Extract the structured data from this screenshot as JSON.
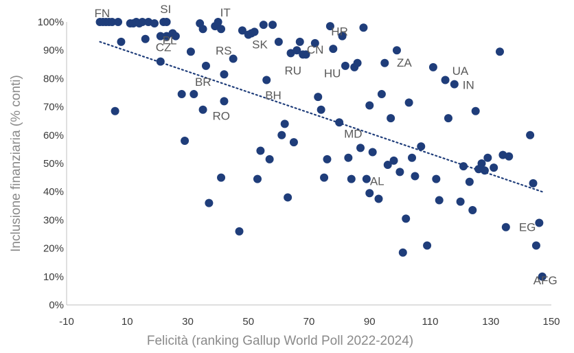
{
  "chart_data": {
    "type": "scatter",
    "title": "",
    "xlabel": "Felicità (ranking Gallup World Poll 2022-2024)",
    "ylabel": "Inclusione finanziaria (% conti)",
    "xlim": [
      -10,
      150
    ],
    "ylim": [
      0,
      100
    ],
    "xticks": [
      -10,
      10,
      30,
      50,
      70,
      90,
      110,
      130,
      150
    ],
    "yticks": [
      0,
      10,
      20,
      30,
      40,
      50,
      60,
      70,
      80,
      90,
      100
    ],
    "x_tick_labels": [
      "-10",
      "10",
      "30",
      "50",
      "70",
      "90",
      "110",
      "130",
      "150"
    ],
    "y_tick_labels": [
      "0%",
      "10%",
      "20%",
      "30%",
      "40%",
      "50%",
      "60%",
      "70%",
      "80%",
      "90%",
      "100%"
    ],
    "grid": false,
    "marker_color": "#1f3d7a",
    "trendline": {
      "style": "dotted",
      "color": "#1f3d7a",
      "from": [
        1,
        93
      ],
      "to": [
        147,
        40
      ]
    },
    "series": [
      {
        "points": [
          [
            1,
            100
          ],
          [
            2,
            100
          ],
          [
            3,
            100
          ],
          [
            4,
            100
          ],
          [
            5,
            100
          ],
          [
            7,
            100
          ],
          [
            11,
            99.5
          ],
          [
            12,
            99.5
          ],
          [
            13,
            100
          ],
          [
            14,
            99.5
          ],
          [
            15,
            100
          ],
          [
            17,
            100
          ],
          [
            19,
            99.5
          ],
          [
            22,
            100
          ],
          [
            23,
            100
          ],
          [
            34,
            99.5
          ],
          [
            39,
            98.5
          ],
          [
            40,
            100
          ],
          [
            41,
            97.5
          ],
          [
            35,
            97.5
          ],
          [
            21,
            95
          ],
          [
            23,
            95
          ],
          [
            25,
            96
          ],
          [
            26,
            95
          ],
          [
            16,
            94
          ],
          [
            8,
            93
          ],
          [
            31,
            89.5
          ],
          [
            21,
            86
          ],
          [
            36,
            84.5
          ],
          [
            45,
            87
          ],
          [
            42,
            81.5
          ],
          [
            28,
            74.5
          ],
          [
            32,
            74.5
          ],
          [
            35,
            69
          ],
          [
            42,
            72
          ],
          [
            6,
            68.5
          ],
          [
            29,
            58
          ],
          [
            41,
            45
          ],
          [
            37,
            36
          ],
          [
            47,
            26
          ],
          [
            48,
            97
          ],
          [
            50,
            95.5
          ],
          [
            51,
            96
          ],
          [
            52,
            96.5
          ],
          [
            55,
            99
          ],
          [
            58,
            99
          ],
          [
            60,
            93
          ],
          [
            56,
            79.5
          ],
          [
            64,
            89
          ],
          [
            66,
            90
          ],
          [
            67,
            93
          ],
          [
            69,
            88.5
          ],
          [
            68,
            88.5
          ],
          [
            72,
            92.5
          ],
          [
            77,
            98.5
          ],
          [
            78,
            90.5
          ],
          [
            81,
            95
          ],
          [
            88,
            98
          ],
          [
            82,
            84.5
          ],
          [
            85,
            84
          ],
          [
            86,
            85.5
          ],
          [
            95,
            85.5
          ],
          [
            99,
            90
          ],
          [
            111,
            84
          ],
          [
            115,
            79.5
          ],
          [
            118,
            78
          ],
          [
            133,
            89.5
          ],
          [
            73,
            73.5
          ],
          [
            74,
            69
          ],
          [
            80,
            64.5
          ],
          [
            90,
            70.5
          ],
          [
            94,
            74.5
          ],
          [
            97,
            66
          ],
          [
            103,
            71.5
          ],
          [
            116,
            66
          ],
          [
            125,
            68.5
          ],
          [
            62,
            64
          ],
          [
            61,
            60
          ],
          [
            65,
            57.5
          ],
          [
            54,
            54.5
          ],
          [
            57,
            51.5
          ],
          [
            53,
            44.5
          ],
          [
            63,
            38
          ],
          [
            75,
            45
          ],
          [
            76,
            51.5
          ],
          [
            83,
            52
          ],
          [
            84,
            44.5
          ],
          [
            87,
            55.5
          ],
          [
            89,
            44.5
          ],
          [
            91,
            54
          ],
          [
            90,
            39.5
          ],
          [
            93,
            37.5
          ],
          [
            96,
            49.5
          ],
          [
            98,
            51
          ],
          [
            100,
            47
          ],
          [
            102,
            30.5
          ],
          [
            101,
            18.5
          ],
          [
            104,
            52
          ],
          [
            105,
            45.5
          ],
          [
            107,
            56
          ],
          [
            109,
            21
          ],
          [
            112,
            44.5
          ],
          [
            113,
            37
          ],
          [
            120,
            36.5
          ],
          [
            121,
            49
          ],
          [
            123,
            43.5
          ],
          [
            124,
            33.5
          ],
          [
            126,
            48
          ],
          [
            127,
            50
          ],
          [
            128,
            47.5
          ],
          [
            129,
            52
          ],
          [
            131,
            48.5
          ],
          [
            134,
            53
          ],
          [
            135,
            27.5
          ],
          [
            136,
            52.5
          ],
          [
            143,
            60
          ],
          [
            144,
            43
          ],
          [
            145,
            21
          ],
          [
            146,
            29
          ],
          [
            147,
            10
          ]
        ]
      }
    ],
    "annotations": [
      {
        "text": "FN",
        "x": 1,
        "y": 100
      },
      {
        "text": "SI",
        "x": 22,
        "y": 100
      },
      {
        "text": "IT",
        "x": 40,
        "y": 100
      },
      {
        "text": "PL",
        "x": 23,
        "y": 95
      },
      {
        "text": "CZ",
        "x": 21,
        "y": 95
      },
      {
        "text": "RS",
        "x": 36,
        "y": 89.5
      },
      {
        "text": "SK",
        "x": 51,
        "y": 96
      },
      {
        "text": "HR",
        "x": 78,
        "y": 95
      },
      {
        "text": "CN",
        "x": 72,
        "y": 90
      },
      {
        "text": "RU",
        "x": 64,
        "y": 89
      },
      {
        "text": "HU",
        "x": 77,
        "y": 88.5
      },
      {
        "text": "ZA",
        "x": 99,
        "y": 90
      },
      {
        "text": "UA",
        "x": 115,
        "y": 84
      },
      {
        "text": "IN",
        "x": 118,
        "y": 79.5
      },
      {
        "text": "BR",
        "x": 36,
        "y": 84.5
      },
      {
        "text": "BH",
        "x": 56,
        "y": 79.5
      },
      {
        "text": "RO",
        "x": 42,
        "y": 72
      },
      {
        "text": "MD",
        "x": 80,
        "y": 64.5
      },
      {
        "text": "AL",
        "x": 89,
        "y": 47
      },
      {
        "text": "EG",
        "x": 135,
        "y": 27.5
      },
      {
        "text": "AFG",
        "x": 147,
        "y": 10
      }
    ]
  }
}
